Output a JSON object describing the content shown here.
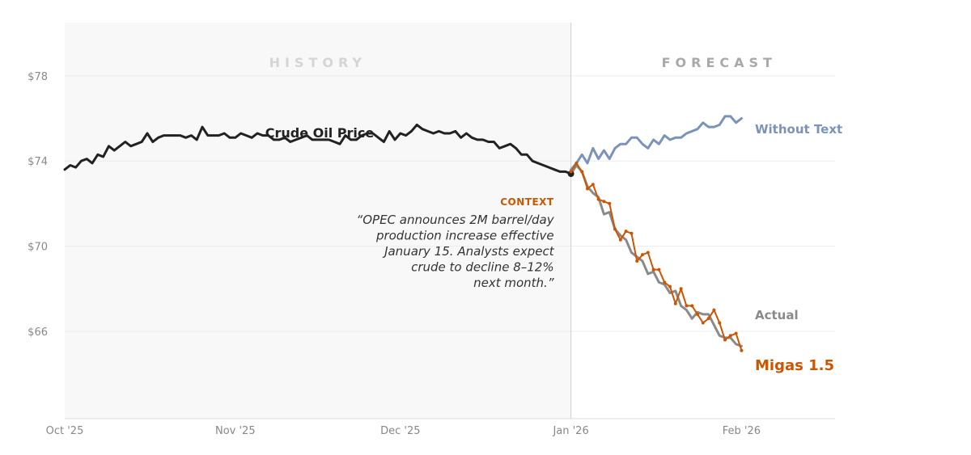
{
  "chart_data": {
    "type": "line",
    "title": "Crude Oil Price",
    "regions": {
      "history": "HISTORY",
      "forecast": "FORECAST"
    },
    "yticks": [
      {
        "value": 66,
        "label": "$66"
      },
      {
        "value": 70,
        "label": "$70"
      },
      {
        "value": 74,
        "label": "$74"
      },
      {
        "value": 78,
        "label": "$78"
      }
    ],
    "xticks": [
      {
        "day": 0,
        "label": "Oct '25"
      },
      {
        "day": 31,
        "label": "Nov '25"
      },
      {
        "day": 61,
        "label": "Dec '25"
      },
      {
        "day": 92,
        "label": "Jan '26"
      },
      {
        "day": 123,
        "label": "Feb '26"
      }
    ],
    "xlim": [
      0,
      140
    ],
    "ylim": [
      61.9,
      80.5
    ],
    "forecast_start_day": 92,
    "context": {
      "title": "CONTEXT",
      "lines": [
        "“OPEC announces 2M barrel/day",
        "production increase effective",
        "January 15. Analysts expect",
        "crude to decline 8–12%",
        "next month.”"
      ]
    },
    "series": [
      {
        "name": "Crude Oil Price",
        "color": "#222222",
        "x": [
          0,
          1,
          2,
          3,
          4,
          5,
          6,
          7,
          8,
          9,
          10,
          11,
          12,
          13,
          14,
          15,
          16,
          17,
          18,
          19,
          20,
          21,
          22,
          23,
          24,
          25,
          26,
          27,
          28,
          29,
          30,
          31,
          32,
          33,
          34,
          35,
          36,
          37,
          38,
          39,
          40,
          41,
          42,
          43,
          44,
          45,
          46,
          47,
          48,
          49,
          50,
          51,
          52,
          53,
          54,
          55,
          56,
          57,
          58,
          59,
          60,
          61,
          62,
          63,
          64,
          65,
          66,
          67,
          68,
          69,
          70,
          71,
          72,
          73,
          74,
          75,
          76,
          77,
          78,
          79,
          80,
          81,
          82,
          83,
          84,
          85,
          86,
          87,
          88,
          89,
          90,
          91,
          92
        ],
        "values": [
          73.6,
          73.8,
          73.7,
          74.0,
          74.1,
          73.9,
          74.3,
          74.2,
          74.7,
          74.5,
          74.7,
          74.9,
          74.7,
          74.8,
          74.9,
          75.3,
          74.9,
          75.1,
          75.2,
          75.2,
          75.2,
          75.2,
          75.1,
          75.2,
          75.0,
          75.6,
          75.2,
          75.2,
          75.2,
          75.3,
          75.1,
          75.1,
          75.3,
          75.2,
          75.1,
          75.3,
          75.2,
          75.2,
          75.0,
          75.0,
          75.1,
          74.9,
          75.0,
          75.1,
          75.2,
          75.0,
          75.0,
          75.0,
          75.0,
          74.9,
          74.8,
          75.2,
          75.0,
          75.0,
          75.2,
          75.3,
          75.3,
          75.1,
          74.9,
          75.4,
          75.0,
          75.3,
          75.2,
          75.4,
          75.7,
          75.5,
          75.4,
          75.3,
          75.4,
          75.3,
          75.3,
          75.4,
          75.1,
          75.3,
          75.1,
          75.0,
          75.0,
          74.9,
          74.9,
          74.6,
          74.7,
          74.8,
          74.6,
          74.3,
          74.3,
          74.0,
          73.9,
          73.8,
          73.7,
          73.6,
          73.5,
          73.5,
          73.4
        ]
      },
      {
        "name": "Without Text",
        "color": "#7b93b8",
        "x": [
          92,
          93,
          94,
          95,
          96,
          97,
          98,
          99,
          100,
          101,
          102,
          103,
          104,
          105,
          106,
          107,
          108,
          109,
          110,
          111,
          112,
          113,
          114,
          115,
          116,
          117,
          118,
          119,
          120,
          121,
          122,
          123
        ],
        "values": [
          73.6,
          73.9,
          74.3,
          73.9,
          74.6,
          74.1,
          74.5,
          74.1,
          74.6,
          74.8,
          74.8,
          75.1,
          75.1,
          74.8,
          74.6,
          75.0,
          74.8,
          75.2,
          75.0,
          75.1,
          75.1,
          75.3,
          75.4,
          75.5,
          75.8,
          75.6,
          75.6,
          75.7,
          76.1,
          76.1,
          75.8,
          76.0
        ]
      },
      {
        "name": "Actual",
        "color": "#8a8a8a",
        "x": [
          92,
          93,
          94,
          95,
          96,
          97,
          98,
          99,
          100,
          101,
          102,
          103,
          104,
          105,
          106,
          107,
          108,
          109,
          110,
          111,
          112,
          113,
          114,
          115,
          116,
          117,
          118,
          119,
          120,
          121,
          122,
          123
        ],
        "values": [
          73.4,
          73.8,
          73.5,
          72.8,
          72.5,
          72.3,
          71.5,
          71.6,
          70.8,
          70.5,
          70.3,
          69.7,
          69.5,
          69.3,
          68.7,
          68.8,
          68.3,
          68.2,
          67.8,
          67.9,
          67.2,
          67.0,
          66.6,
          66.9,
          66.8,
          66.8,
          66.3,
          65.8,
          65.7,
          65.7,
          65.4,
          65.3
        ]
      },
      {
        "name": "Migas 1.5",
        "color": "#cc5500",
        "x": [
          92,
          93,
          94,
          95,
          96,
          97,
          98,
          99,
          100,
          101,
          102,
          103,
          104,
          105,
          106,
          107,
          108,
          109,
          110,
          111,
          112,
          113,
          114,
          115,
          116,
          117,
          118,
          119,
          120,
          121,
          122,
          123
        ],
        "values": [
          73.5,
          73.9,
          73.5,
          72.7,
          72.9,
          72.2,
          72.1,
          72.0,
          70.8,
          70.3,
          70.7,
          70.6,
          69.3,
          69.6,
          69.7,
          68.9,
          68.9,
          68.3,
          68.1,
          67.3,
          68.0,
          67.2,
          67.2,
          66.8,
          66.4,
          66.6,
          67.0,
          66.4,
          65.6,
          65.8,
          65.9,
          65.1
        ]
      }
    ],
    "legend": [
      {
        "series": "Without Text",
        "label": "Without Text",
        "color": "#7b93b8"
      },
      {
        "series": "Actual",
        "label": "Actual",
        "color": "#8a8a8a"
      },
      {
        "series": "Migas 1.5",
        "label": "Migas 1.5",
        "color": "#cc5500"
      }
    ]
  }
}
